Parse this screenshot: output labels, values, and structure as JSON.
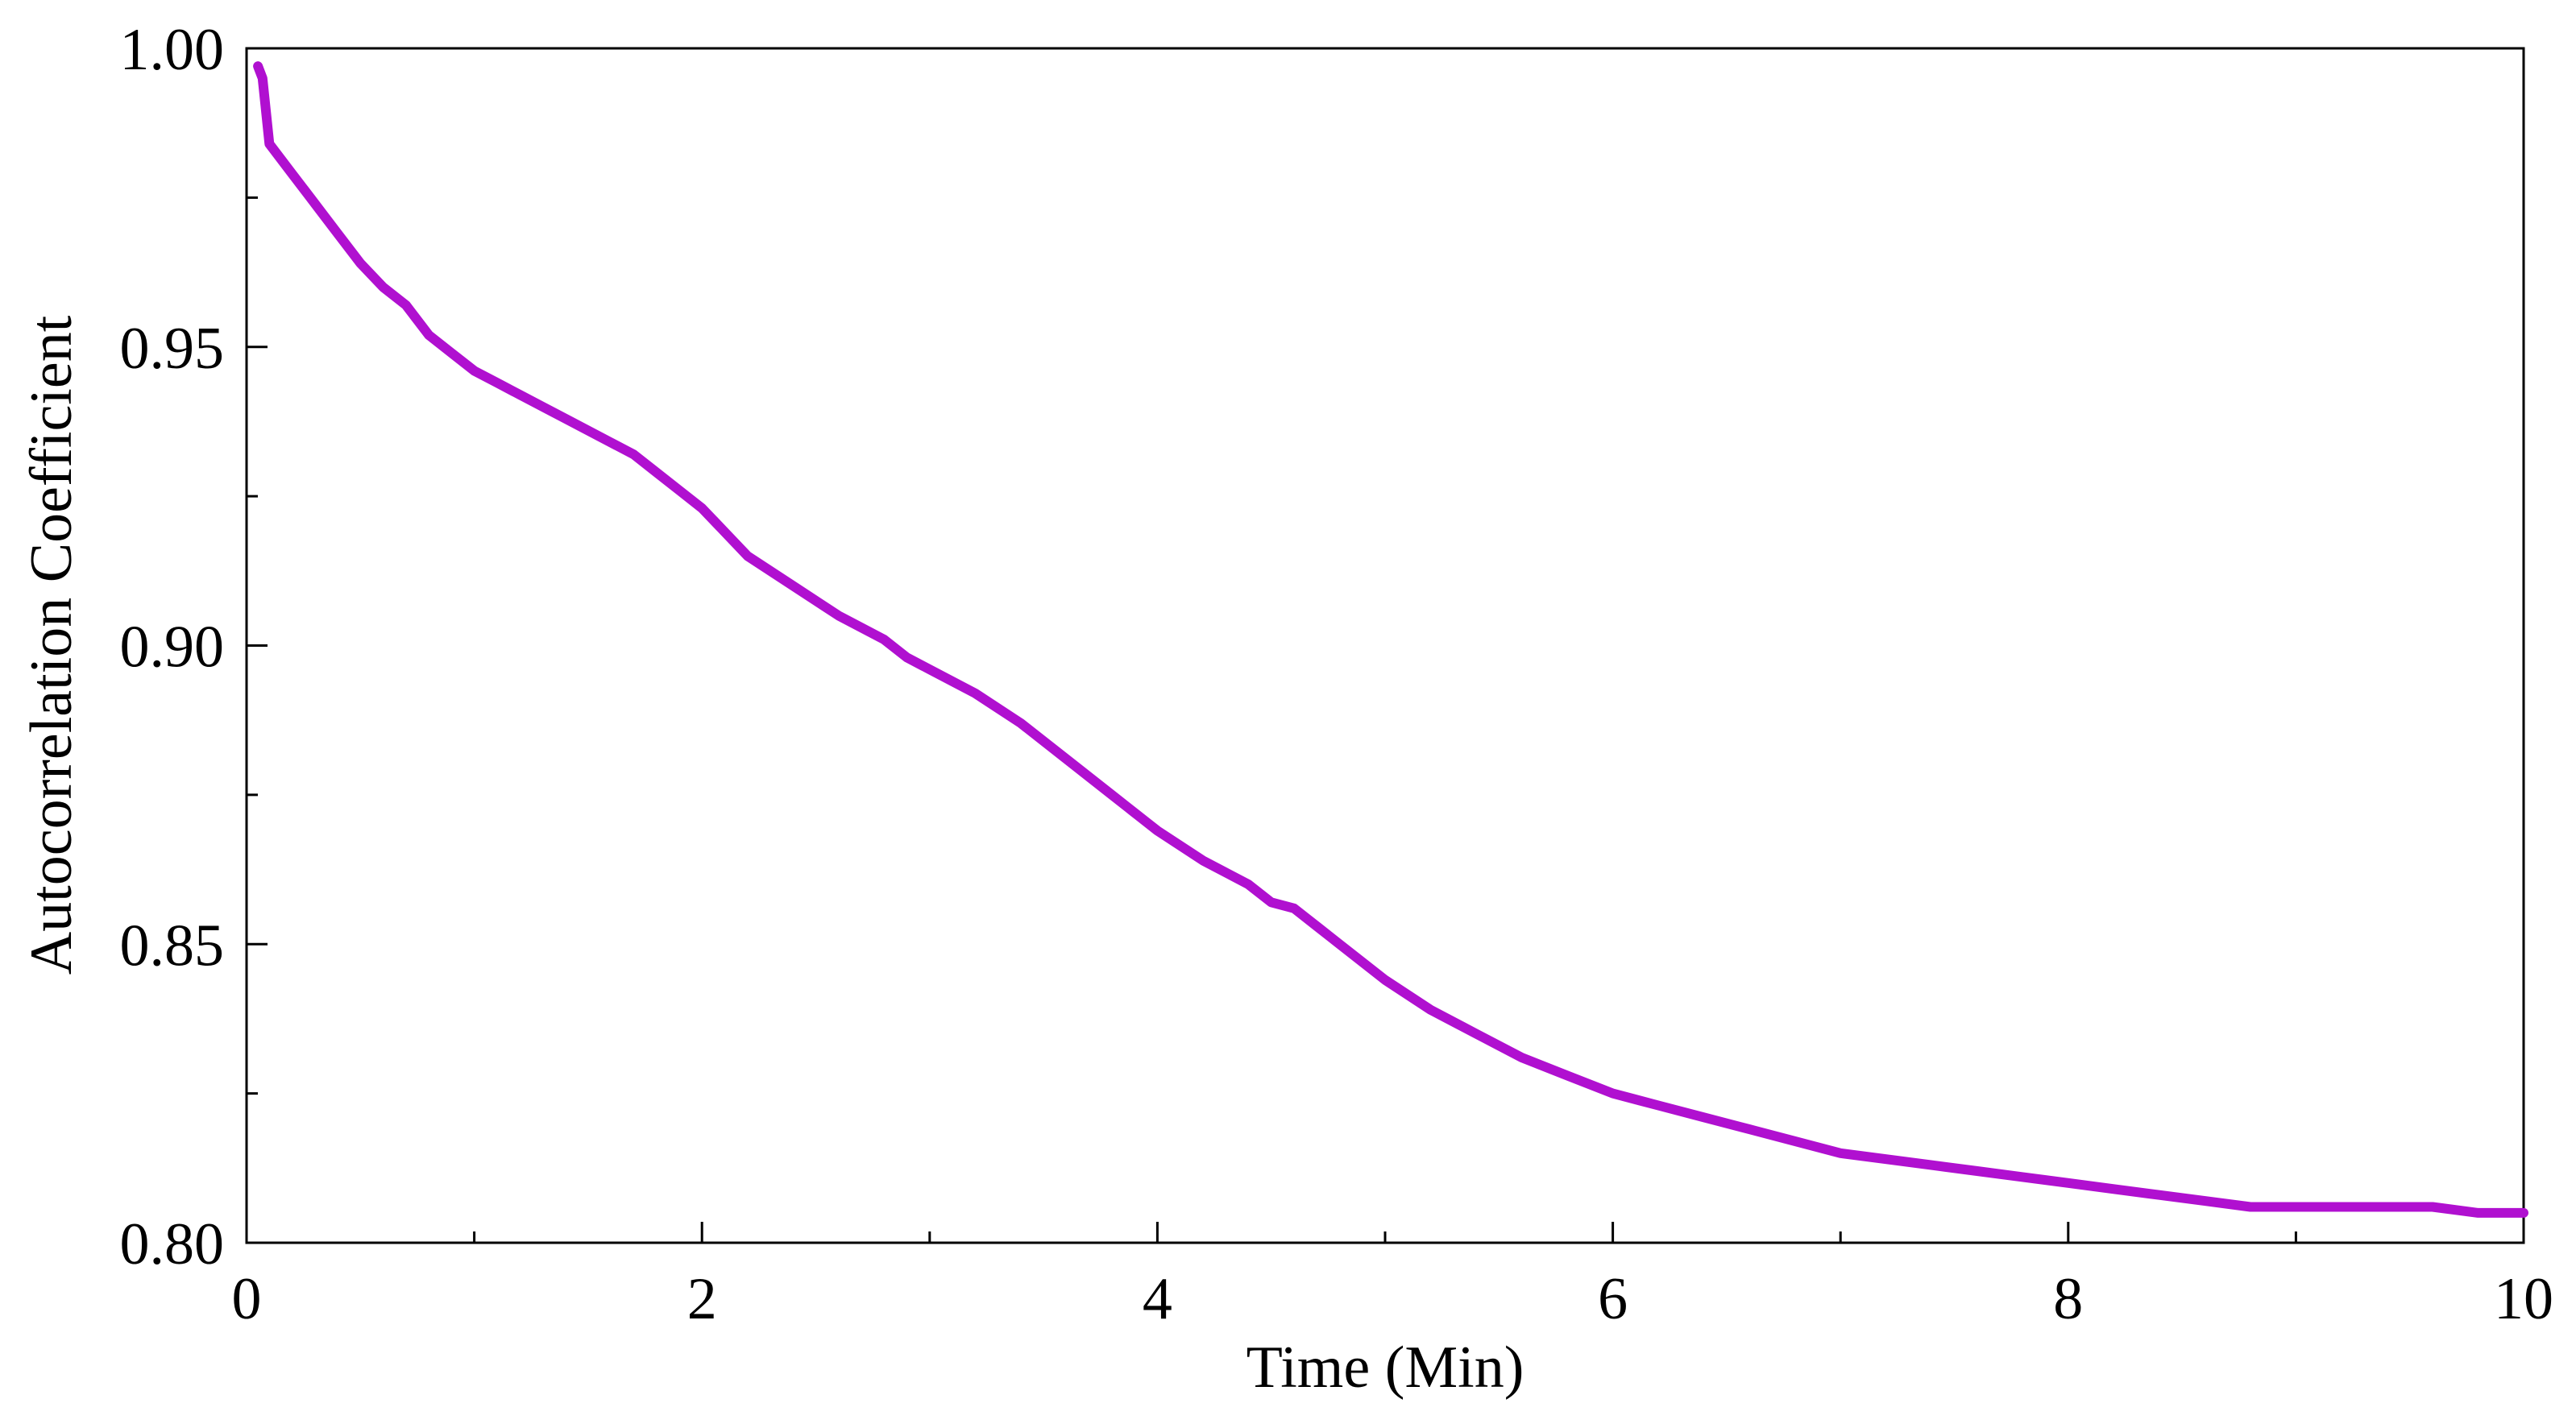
{
  "chart_data": {
    "type": "line",
    "xlabel": "Time (Min)",
    "ylabel": "Autocorrelation Coefficient",
    "xlim": [
      0,
      10
    ],
    "ylim": [
      0.8,
      1.0
    ],
    "x_ticks": [
      0,
      2,
      4,
      6,
      8,
      10
    ],
    "x_tick_labels": [
      "0",
      "2",
      "4",
      "6",
      "8",
      "10"
    ],
    "x_minor_ticks": [
      1,
      3,
      5,
      7,
      9
    ],
    "y_ticks": [
      0.8,
      0.85,
      0.9,
      0.95,
      1.0
    ],
    "y_tick_labels": [
      "0.80",
      "0.85",
      "0.90",
      "0.95",
      "1.00"
    ],
    "y_minor_ticks": [
      0.825,
      0.875,
      0.925,
      0.975
    ],
    "grid": false,
    "series": [
      {
        "color": "#B010D0",
        "x": [
          0.05,
          0.07,
          0.1,
          0.2,
          0.3,
          0.4,
          0.5,
          0.6,
          0.7,
          0.8,
          0.9,
          1.0,
          1.1,
          1.2,
          1.3,
          1.4,
          1.5,
          1.6,
          1.7,
          1.8,
          1.9,
          2.0,
          2.1,
          2.2,
          2.4,
          2.6,
          2.8,
          2.9,
          3.0,
          3.2,
          3.4,
          3.6,
          3.8,
          3.9,
          4.0,
          4.2,
          4.4,
          4.5,
          4.6,
          4.7,
          4.8,
          5.0,
          5.2,
          5.4,
          5.6,
          5.8,
          6.0,
          6.2,
          6.4,
          6.6,
          6.8,
          7.0,
          7.2,
          7.4,
          7.6,
          7.8,
          8.0,
          8.2,
          8.4,
          8.6,
          8.8,
          9.0,
          9.2,
          9.4,
          9.6,
          9.8,
          10.0
        ],
        "y": [
          0.997,
          0.995,
          0.984,
          0.979,
          0.974,
          0.969,
          0.964,
          0.96,
          0.957,
          0.952,
          0.949,
          0.946,
          0.944,
          0.942,
          0.94,
          0.938,
          0.936,
          0.934,
          0.932,
          0.929,
          0.926,
          0.923,
          0.919,
          0.915,
          0.91,
          0.905,
          0.901,
          0.898,
          0.896,
          0.892,
          0.887,
          0.881,
          0.875,
          0.872,
          0.869,
          0.864,
          0.86,
          0.857,
          0.856,
          0.853,
          0.85,
          0.844,
          0.839,
          0.835,
          0.831,
          0.828,
          0.825,
          0.823,
          0.821,
          0.819,
          0.817,
          0.815,
          0.814,
          0.813,
          0.812,
          0.811,
          0.81,
          0.809,
          0.808,
          0.807,
          0.806,
          0.806,
          0.806,
          0.806,
          0.806,
          0.805,
          0.805
        ]
      }
    ]
  }
}
